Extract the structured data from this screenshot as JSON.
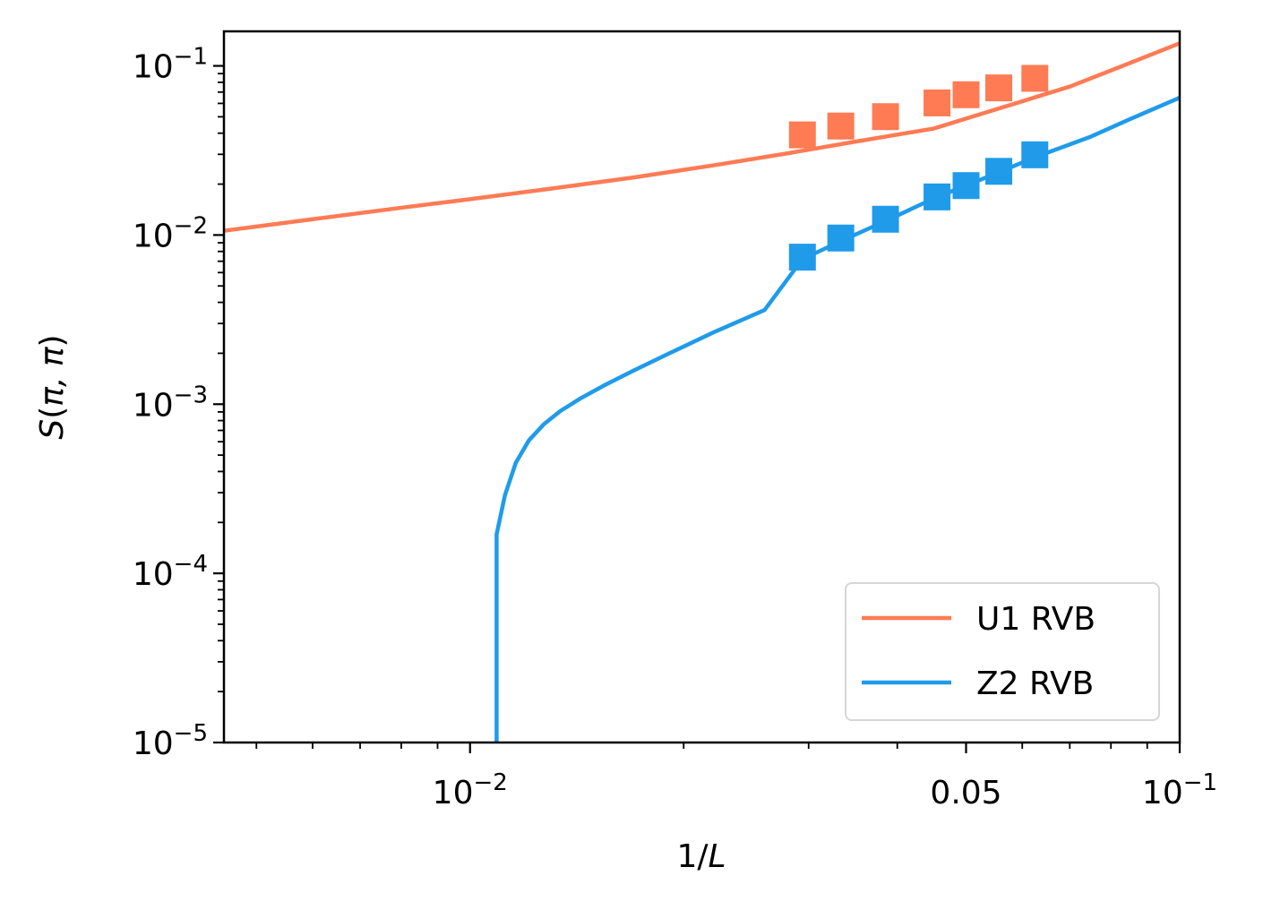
{
  "chart_data": {
    "type": "line",
    "xscale": "log",
    "yscale": "log",
    "xlim": [
      0.0045,
      0.1
    ],
    "ylim": [
      1e-05,
      0.16
    ],
    "xlabel_pre": "1/",
    "xlabel_var": "L",
    "ylabel_pre": "S(",
    "ylabel_var": "π, π",
    "ylabel_post": ")",
    "grid": false,
    "legend_position": "lower-right",
    "x_ticks": [
      {
        "value": 0.01,
        "base": "10",
        "exp": "−2"
      },
      {
        "value": 0.05,
        "text": "0.05"
      },
      {
        "value": 0.1,
        "base": "10",
        "exp": "−1"
      }
    ],
    "y_ticks": [
      {
        "value": 0.1,
        "base": "10",
        "exp": "−1"
      },
      {
        "value": 0.01,
        "base": "10",
        "exp": "−2"
      },
      {
        "value": 0.001,
        "base": "10",
        "exp": "−3"
      },
      {
        "value": 0.0001,
        "base": "10",
        "exp": "−4"
      },
      {
        "value": 1e-05,
        "base": "10",
        "exp": "−5"
      }
    ],
    "series": [
      {
        "name": "U1 RVB",
        "color": "#FF7B54",
        "fit_x": [
          0.0045,
          0.006,
          0.008,
          0.01,
          0.013,
          0.017,
          0.022,
          0.028,
          0.035,
          0.045,
          0.055,
          0.07,
          0.085,
          0.1
        ],
        "fit_y": [
          0.0106,
          0.0124,
          0.0145,
          0.0163,
          0.0188,
          0.0219,
          0.0258,
          0.0304,
          0.0357,
          0.0426,
          0.0552,
          0.0754,
          0.1038,
          0.1359
        ],
        "points_x": [
          0.0294,
          0.0333,
          0.0385,
          0.0455,
          0.05,
          0.0556,
          0.0625
        ],
        "points_y": [
          0.0391,
          0.0441,
          0.0501,
          0.0604,
          0.0675,
          0.0741,
          0.0844
        ]
      },
      {
        "name": "Z2 RVB",
        "color": "#1F9BEA",
        "fit_x": [
          0.0109,
          0.0109,
          0.0112,
          0.0116,
          0.0121,
          0.0127,
          0.0134,
          0.0143,
          0.0155,
          0.017,
          0.019,
          0.022,
          0.026,
          0.0294,
          0.0333,
          0.0385,
          0.0455,
          0.05,
          0.0556,
          0.0625,
          0.075,
          0.085,
          0.1
        ],
        "fit_y": [
          1e-05,
          0.00017,
          0.00029,
          0.00045,
          0.00061,
          0.00076,
          0.00091,
          0.00108,
          0.0013,
          0.00158,
          0.00198,
          0.00265,
          0.0036,
          0.0072,
          0.0092,
          0.0121,
          0.0168,
          0.0196,
          0.0235,
          0.0288,
          0.0382,
          0.0483,
          0.0649
        ],
        "points_x": [
          0.0294,
          0.0333,
          0.0385,
          0.0455,
          0.05,
          0.0556,
          0.0625
        ],
        "points_y": [
          0.0074,
          0.0096,
          0.0124,
          0.0168,
          0.0196,
          0.0238,
          0.0298
        ]
      }
    ]
  }
}
